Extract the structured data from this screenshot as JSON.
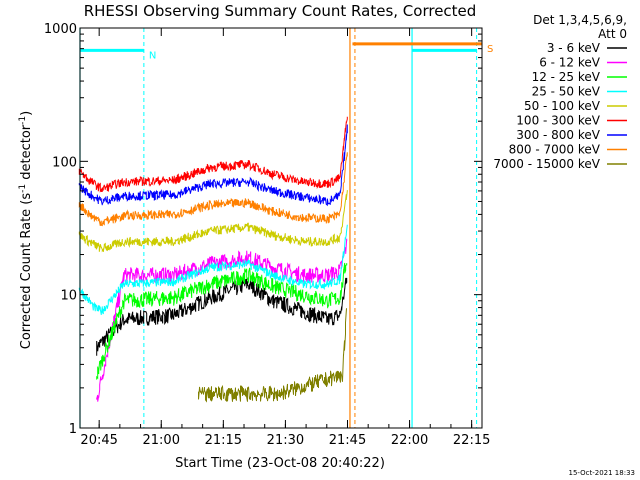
{
  "chart_data": {
    "type": "line",
    "title": "RHESSI Observing Summary Count Rates, Corrected",
    "xlabel": "Start Time (23-Oct-08 20:40:22)",
    "ylabel": "Corrected Count Rate (s",
    "ylabel_sup1": "-1",
    "ylabel_mid": " detector",
    "ylabel_sup2": "-1",
    "ylabel_end": ")",
    "yscale": "log",
    "xlim": [
      20.6728,
      22.2917
    ],
    "ylim": [
      1,
      1000
    ],
    "xticks": [
      {
        "value": 20.75,
        "label": "20:45"
      },
      {
        "value": 21.0,
        "label": "21:00"
      },
      {
        "value": 21.25,
        "label": "21:15"
      },
      {
        "value": 21.5,
        "label": "21:30"
      },
      {
        "value": 21.75,
        "label": "21:45"
      },
      {
        "value": 22.0,
        "label": "22:00"
      },
      {
        "value": 22.25,
        "label": "22:15"
      }
    ],
    "yticks": [
      {
        "value": 1,
        "label": "1"
      },
      {
        "value": 10,
        "label": "10"
      },
      {
        "value": 100,
        "label": "100"
      },
      {
        "value": 1000,
        "label": "1000"
      }
    ],
    "legend_title_line1": "Det 1,3,4,5,6,9,",
    "legend_title_line2": "Att 0",
    "legend_placement": "right",
    "timestamp": "15-Oct-2021 18:33",
    "series": [
      {
        "name": "3 - 6 keV",
        "color": "#000000",
        "x": [
          20.74,
          20.85,
          21.05,
          21.2,
          21.35,
          21.45,
          21.57,
          21.67,
          21.72,
          21.75
        ],
        "y": [
          4.0,
          6.5,
          7.0,
          9.5,
          12.0,
          9.0,
          7.5,
          6.5,
          7.0,
          14.0
        ]
      },
      {
        "name": "6 - 12 keV",
        "color": "#ff00ff",
        "x": [
          20.74,
          20.85,
          21.05,
          21.2,
          21.35,
          21.45,
          21.57,
          21.67,
          21.72,
          21.75
        ],
        "y": [
          1.6,
          14.0,
          14.0,
          17.0,
          19.0,
          16.0,
          14.0,
          14.0,
          15.0,
          25.0
        ]
      },
      {
        "name": "12 - 25 keV",
        "color": "#00ff00",
        "x": [
          20.74,
          20.85,
          21.05,
          21.2,
          21.35,
          21.45,
          21.57,
          21.67,
          21.72,
          21.75
        ],
        "y": [
          2.5,
          9.0,
          9.5,
          12.0,
          14.0,
          11.5,
          10.0,
          9.0,
          9.5,
          20.0
        ]
      },
      {
        "name": "25 - 50 keV",
        "color": "#00ffff",
        "x": [
          20.67,
          20.71,
          20.73,
          20.76,
          20.85,
          21.05,
          21.2,
          21.35,
          21.45,
          21.57,
          21.67,
          21.72,
          21.75
        ],
        "y": [
          11.0,
          9.0,
          8.0,
          7.5,
          12.0,
          12.5,
          16.0,
          17.0,
          14.0,
          12.0,
          12.0,
          13.0,
          35.0
        ]
      },
      {
        "name": "50 - 100 keV",
        "color": "#cccc00",
        "x": [
          20.67,
          20.71,
          20.76,
          20.85,
          21.05,
          21.2,
          21.35,
          21.45,
          21.57,
          21.67,
          21.72,
          21.75
        ],
        "y": [
          28.0,
          25.0,
          22.0,
          25.0,
          25.0,
          30.0,
          32.0,
          28.0,
          25.0,
          25.0,
          27.0,
          60.0
        ]
      },
      {
        "name": "100 - 300 keV",
        "color": "#ff0000",
        "x": [
          20.67,
          20.71,
          20.76,
          20.85,
          21.05,
          21.2,
          21.35,
          21.45,
          21.57,
          21.67,
          21.72,
          21.75
        ],
        "y": [
          85.0,
          72.0,
          62.0,
          70.0,
          72.0,
          90.0,
          95.0,
          80.0,
          70.0,
          68.0,
          75.0,
          230.0
        ]
      },
      {
        "name": "300 - 800 keV",
        "color": "#0000ff",
        "x": [
          20.67,
          20.71,
          20.76,
          20.85,
          21.05,
          21.2,
          21.35,
          21.45,
          21.57,
          21.67,
          21.72,
          21.75
        ],
        "y": [
          65.0,
          57.0,
          50.0,
          55.0,
          56.0,
          68.0,
          70.0,
          60.0,
          54.0,
          50.0,
          55.0,
          180.0
        ]
      },
      {
        "name": "800 - 7000 keV",
        "color": "#ff8000",
        "x": [
          20.67,
          20.71,
          20.76,
          20.85,
          21.05,
          21.2,
          21.35,
          21.45,
          21.57,
          21.67,
          21.72,
          21.75
        ],
        "y": [
          48.0,
          40.0,
          35.0,
          39.0,
          40.0,
          47.0,
          49.0,
          42.0,
          38.0,
          37.0,
          40.0,
          120.0
        ]
      },
      {
        "name": "7000 - 15000 keV",
        "color": "#808000",
        "x": [
          21.15,
          21.2,
          21.3,
          21.4,
          21.47,
          21.73,
          21.75
        ],
        "y": [
          1.8,
          1.8,
          1.8,
          1.8,
          1.8,
          2.5,
          9.0
        ]
      }
    ],
    "flags": [
      {
        "label": "N",
        "color": "#00ffff",
        "level": 680,
        "spans": [
          [
            20.6728,
            20.93
          ]
        ]
      },
      {
        "label": "S",
        "color": "#ff8000",
        "level": 760,
        "spans": [
          [
            21.77,
            22.2917
          ]
        ]
      },
      {
        "label": "",
        "color": "#00ffff",
        "level": 680,
        "spans": [
          [
            22.01,
            22.27
          ]
        ]
      }
    ],
    "solid_markers": [
      {
        "x": 20.6728,
        "color": "#00ffff"
      },
      {
        "x": 21.76,
        "color": "#ff8000"
      },
      {
        "x": 22.01,
        "color": "#00ffff"
      }
    ],
    "dashed_markers": [
      {
        "x": 20.93,
        "color": "#00ffff"
      },
      {
        "x": 21.78,
        "color": "#ff8000"
      },
      {
        "x": 22.27,
        "color": "#00ffff"
      }
    ]
  }
}
